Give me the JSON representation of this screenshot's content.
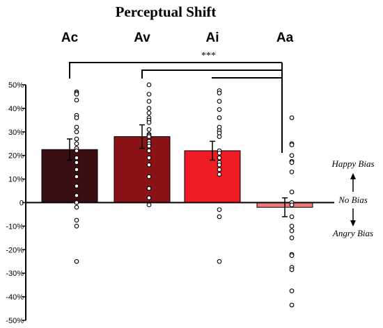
{
  "chart_data": {
    "type": "bar",
    "title": "Perceptual Shift",
    "categories": [
      "Ac",
      "Av",
      "Ai",
      "Aa"
    ],
    "values": [
      22.5,
      28.0,
      22.0,
      -2.0
    ],
    "errors": [
      4.5,
      5.0,
      4.0,
      4.0
    ],
    "colors": [
      "#3a0e12",
      "#8b1317",
      "#ee1c25",
      "#ee7b7b"
    ],
    "ylim": [
      -50,
      50
    ],
    "yticks": [
      -50,
      -40,
      -30,
      -20,
      -10,
      0,
      10,
      20,
      30,
      40,
      50
    ],
    "ytick_labels": [
      "-50%",
      "-40%",
      "-30%",
      "-20%",
      "-10%",
      "0",
      "10%",
      "20%",
      "30%",
      "40%",
      "50%"
    ],
    "xlabel": "",
    "ylabel": "",
    "grid": false,
    "points": [
      [
        47,
        46.5,
        46,
        43.5,
        37,
        36,
        32,
        30,
        27,
        25,
        23,
        22,
        19,
        17,
        14,
        11,
        7,
        3,
        0,
        -2,
        -7.5,
        -10,
        -25
      ],
      [
        50,
        46,
        43,
        40,
        38,
        36,
        35,
        34,
        31,
        29,
        28.5,
        28,
        26,
        25,
        24,
        22,
        19,
        16,
        11,
        6,
        2,
        -1
      ],
      [
        47.5,
        46.5,
        43,
        39.5,
        36,
        32,
        30.5,
        29.5,
        28,
        22,
        21,
        19,
        17,
        16,
        14,
        12,
        -3,
        -6,
        -25
      ],
      [
        36,
        25,
        24.5,
        20,
        17.5,
        17,
        13,
        4.5,
        0,
        -1,
        -6,
        -10,
        -12,
        -15,
        -22,
        -22.5,
        -27.5,
        -28.5,
        -37.5,
        -43.5
      ]
    ],
    "significance": {
      "label": "***",
      "comparisons": [
        [
          "Ac",
          "Aa"
        ],
        [
          "Av",
          "Aa"
        ],
        [
          "Ai",
          "Aa"
        ]
      ]
    },
    "annotations": {
      "up": "Happy Bias",
      "middle": "No Bias",
      "down": "Angry Bias"
    }
  }
}
